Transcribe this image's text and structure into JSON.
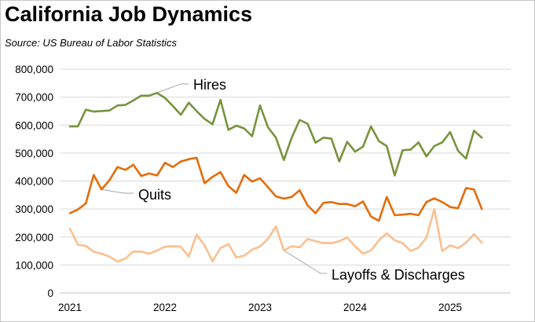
{
  "title": "California Job Dynamics",
  "source": "Source:  US Bureau of Labor Statistics",
  "chart_data": {
    "type": "line",
    "title": "California Job Dynamics",
    "ylim": [
      0,
      800000
    ],
    "yticks": [
      0,
      100000,
      200000,
      300000,
      400000,
      500000,
      600000,
      700000,
      800000
    ],
    "ytick_labels": [
      "0",
      "100,000",
      "200,000",
      "300,000",
      "400,000",
      "500,000",
      "600,000",
      "700,000",
      "800,000"
    ],
    "x_start": 2021.0,
    "x_step_months": 1,
    "xticks": [
      2021,
      2022,
      2023,
      2024,
      2025
    ],
    "xtick_labels": [
      "2021",
      "2022",
      "2023",
      "2024",
      "2025"
    ],
    "grid": true,
    "legend": "callouts",
    "series": [
      {
        "name": "Hires",
        "color": "#77933c",
        "label_anchor_month": 10,
        "values": [
          595000,
          595000,
          655000,
          648000,
          650000,
          652000,
          670000,
          672000,
          688000,
          705000,
          705000,
          715000,
          697000,
          668000,
          637000,
          680000,
          650000,
          622000,
          603000,
          690000,
          583000,
          598000,
          588000,
          560000,
          670000,
          592000,
          555000,
          475000,
          555000,
          618000,
          605000,
          537000,
          555000,
          552000,
          470000,
          540000,
          505000,
          523000,
          595000,
          543000,
          525000,
          420000,
          510000,
          512000,
          538000,
          488000,
          525000,
          538000,
          575000,
          508000,
          480000,
          580000,
          555000
        ]
      },
      {
        "name": "Quits",
        "color": "#e46c0a",
        "label_anchor_month": 4,
        "values": [
          285000,
          298000,
          320000,
          422000,
          370000,
          403000,
          450000,
          440000,
          458000,
          418000,
          427000,
          420000,
          465000,
          450000,
          470000,
          478000,
          483000,
          392000,
          415000,
          432000,
          382000,
          358000,
          422000,
          398000,
          410000,
          378000,
          345000,
          337000,
          343000,
          367000,
          313000,
          285000,
          322000,
          325000,
          318000,
          318000,
          310000,
          327000,
          273000,
          258000,
          343000,
          278000,
          280000,
          283000,
          278000,
          325000,
          338000,
          325000,
          307000,
          303000,
          375000,
          370000,
          300000
        ]
      },
      {
        "name": "Layoffs & Discharges",
        "color": "#fabf8f",
        "label_anchor_month": 27,
        "values": [
          230000,
          172000,
          168000,
          147000,
          140000,
          130000,
          112000,
          123000,
          148000,
          148000,
          140000,
          152000,
          165000,
          167000,
          165000,
          130000,
          208000,
          170000,
          113000,
          160000,
          175000,
          127000,
          133000,
          155000,
          166000,
          193000,
          238000,
          152000,
          167000,
          163000,
          193000,
          185000,
          178000,
          178000,
          185000,
          198000,
          167000,
          140000,
          152000,
          188000,
          213000,
          188000,
          178000,
          150000,
          162000,
          198000,
          300000,
          150000,
          170000,
          160000,
          180000,
          210000,
          180000
        ]
      }
    ]
  },
  "callouts": {
    "hires": "Hires",
    "quits": "Quits",
    "layoffs": "Layoffs & Discharges"
  }
}
